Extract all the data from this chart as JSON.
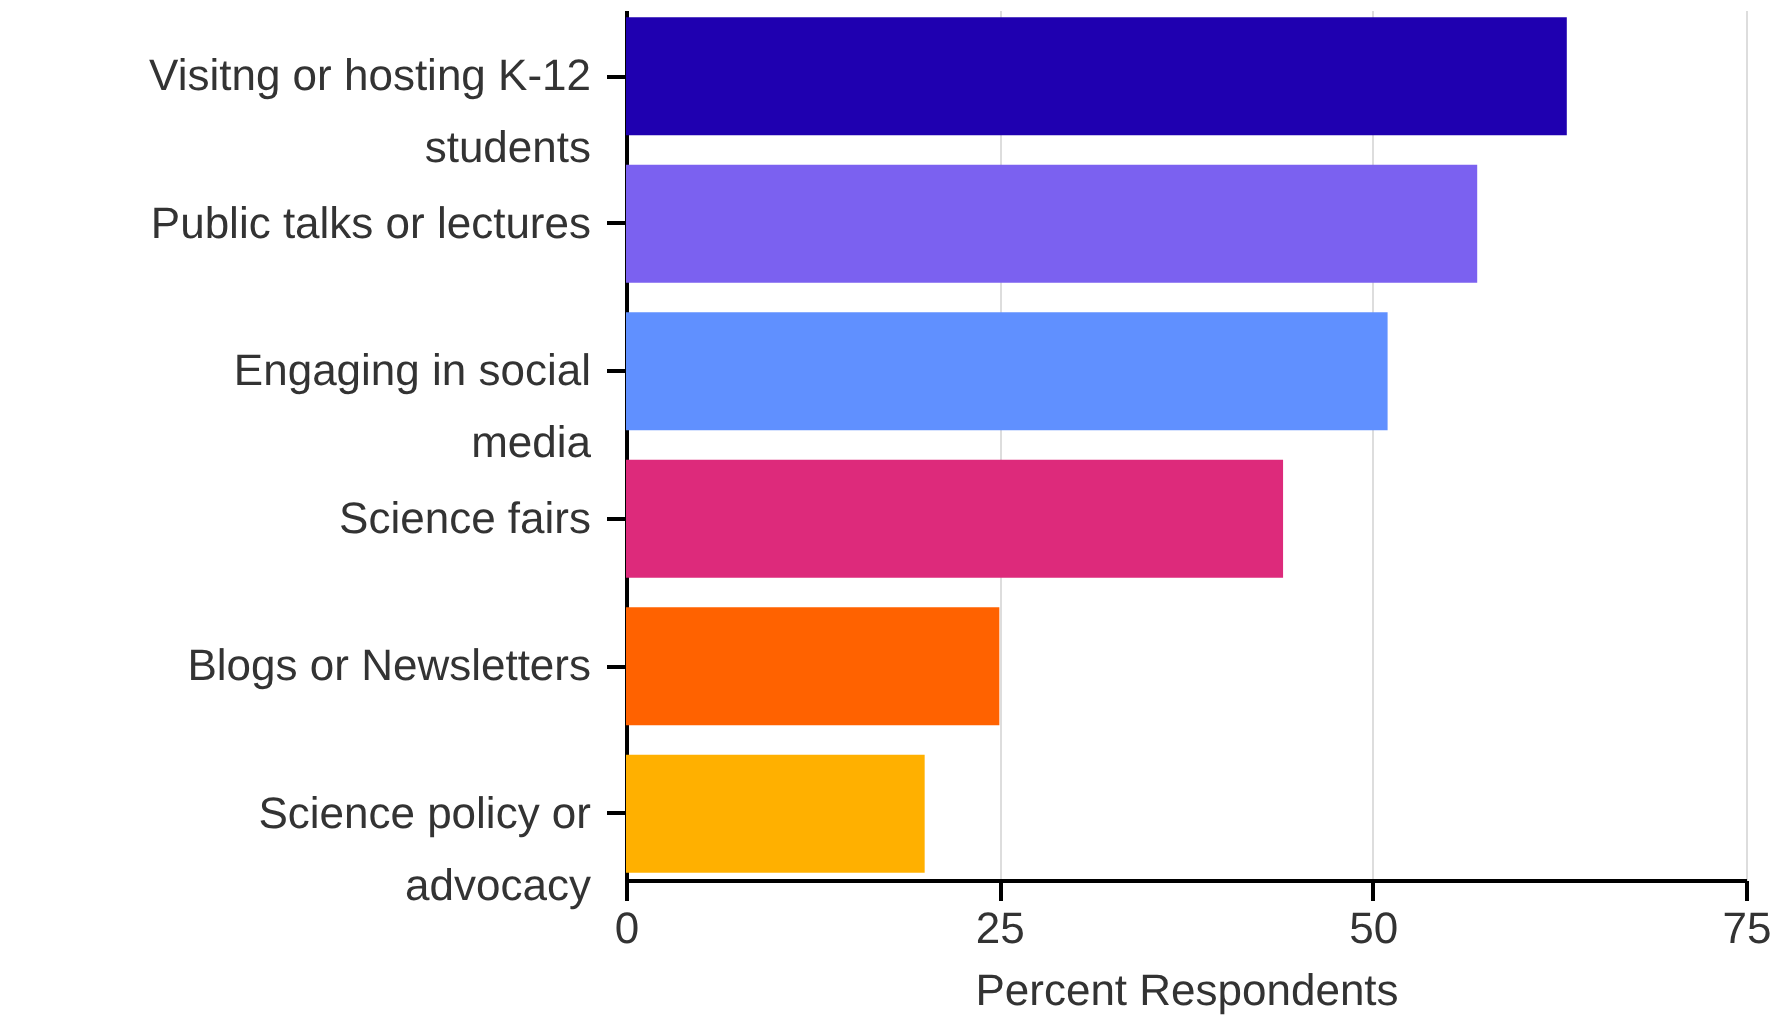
{
  "chart_data": {
    "type": "bar",
    "orientation": "horizontal",
    "xlabel": "Percent Respondents",
    "categories": [
      "Visitng or hosting K-12\nstudents",
      "Public talks or lectures",
      "Engaging in social\nmedia",
      "Science fairs",
      "Blogs or Newsletters",
      "Science policy or\nadvocacy"
    ],
    "values": [
      63,
      57,
      51,
      44,
      25,
      20
    ],
    "colors": [
      "#1f00b0",
      "#7b61f0",
      "#6090ff",
      "#dd2a7b",
      "#ff6200",
      "#ffb000"
    ],
    "xlim": [
      0,
      75
    ],
    "xticks": [
      0,
      25,
      50,
      75
    ],
    "grid": "x"
  }
}
